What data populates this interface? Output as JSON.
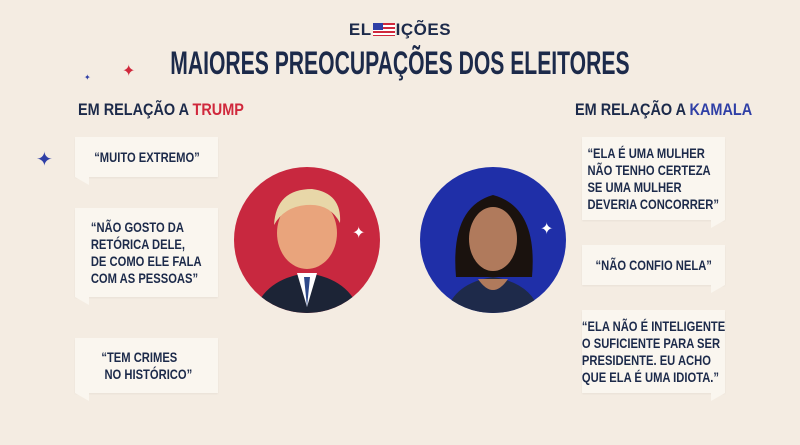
{
  "logo": {
    "left": "EL",
    "right": "IÇÕES"
  },
  "title": "MAIORES PREOCUPAÇÕES DOS ELEITORES",
  "trump": {
    "heading_prefix": "EM RELAÇÃO A ",
    "heading_name": "TRUMP",
    "color": "#c8283f",
    "quotes": [
      "“MUITO EXTREMO”",
      "“NÃO GOSTO DA\nRETÓRICA DELE,\nDE COMO ELE FALA\nCOM AS PESSOAS”",
      "“TEM CRIMES\n NO HISTÓRICO”"
    ]
  },
  "kamala": {
    "heading_prefix": "EM RELAÇÃO A ",
    "heading_name": "KAMALA",
    "color": "#1f2fa8",
    "quotes": [
      "“ELA É UMA MULHER\nNÃO TENHO CERTEZA\nSE UMA MULHER\nDEVERIA CONCORRER”",
      "“NÃO CONFIO NELA”",
      "“ELA NÃO É INTELIGENTE\nO SUFICIENTE PARA SER\nPRESIDENTE. EU ACHO\nQUE ELA É UMA IDIOTA.”"
    ]
  }
}
